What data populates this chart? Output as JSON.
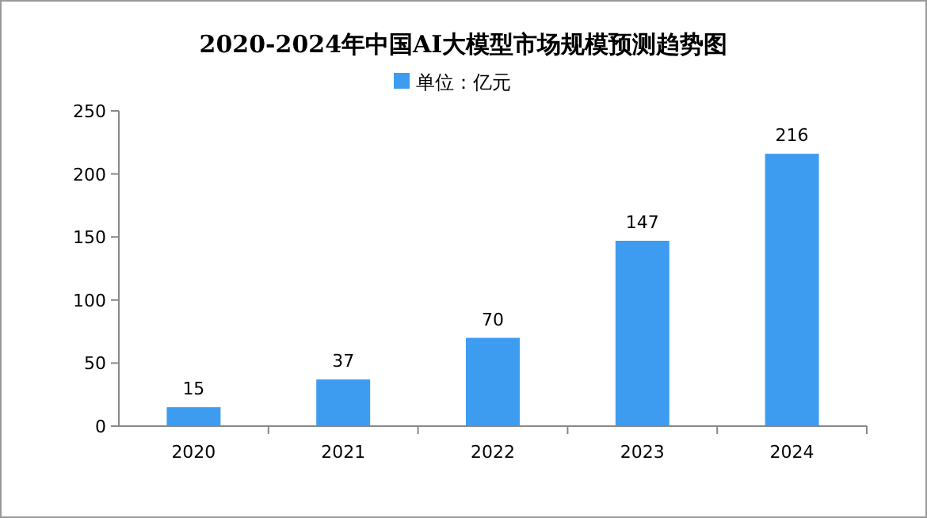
{
  "chart_data": {
    "type": "bar",
    "title": "2020-2024年中国AI大模型市场规模预测趋势图",
    "categories": [
      "2020",
      "2021",
      "2022",
      "2023",
      "2024"
    ],
    "series": [
      {
        "name": "单位：亿元",
        "color": "#3d9cf0",
        "values": [
          15,
          37,
          70,
          147,
          216
        ]
      }
    ],
    "ylim": [
      0,
      250
    ],
    "yticks": [
      0,
      50,
      100,
      150,
      200,
      250
    ],
    "data_labels": true,
    "legend": "top",
    "grid": false
  }
}
